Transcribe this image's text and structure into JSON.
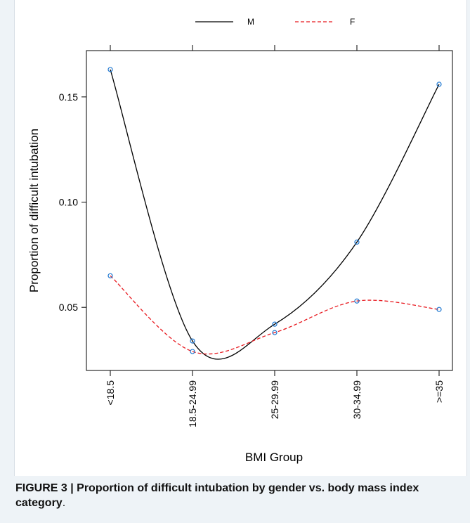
{
  "chart_data": {
    "type": "line",
    "categories": [
      "<18.5",
      "18.5-24.99",
      "25-29.99",
      "30-34.99",
      ">=35"
    ],
    "xlabel": "BMI Group",
    "ylabel": "Proportion of difficult intubation",
    "ylim": [
      0.02,
      0.172
    ],
    "yticks": [
      "0.05",
      "0.10",
      "0.15"
    ],
    "ytick_values": [
      0.05,
      0.1,
      0.15
    ],
    "grid": false,
    "legend_placement": "top",
    "series": [
      {
        "name": "M",
        "values": [
          0.163,
          0.034,
          0.042,
          0.081,
          0.156
        ],
        "color": "#000000",
        "dash": "solid"
      },
      {
        "name": "F",
        "values": [
          0.065,
          0.029,
          0.038,
          0.053,
          0.049
        ],
        "color": "#e8191f",
        "dash": "dashed"
      }
    ],
    "point_color": "#1f78d1"
  },
  "caption": {
    "bold": "FIGURE 3 | Proportion of difficult intubation by gender vs. body mass index category",
    "rest": "."
  }
}
